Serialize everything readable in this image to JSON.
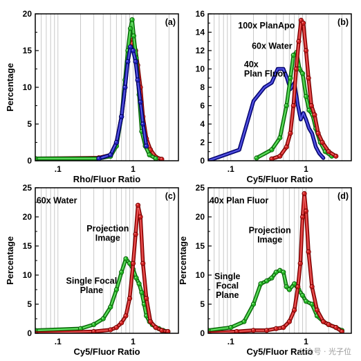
{
  "watermark": "公众号 · 光子位",
  "colors": {
    "red": "#cc1e1e",
    "green": "#22b422",
    "blue": "#2222bb",
    "grid": "#c8c8c8"
  },
  "chart_data": [
    {
      "id": "a",
      "panel_label": "(a)",
      "type": "line",
      "xlabel": "Rho/Fluor Ratio",
      "ylabel": "Percentage",
      "xscale": "log",
      "xlim": [
        0.05,
        4
      ],
      "ylim": [
        0,
        20
      ],
      "xticks": [
        0.1,
        1
      ],
      "xtick_labels": [
        ".1",
        "1"
      ],
      "yticks": [
        0,
        5,
        10,
        15,
        20
      ],
      "ytick_labels": [
        "0",
        "5",
        "10",
        "15",
        "20"
      ],
      "grid": true,
      "annotations": [],
      "series": [
        {
          "color": "red",
          "markers": true,
          "x": [
            0.05,
            0.35,
            0.5,
            0.6,
            0.7,
            0.78,
            0.85,
            0.92,
            1.0,
            1.08,
            1.15,
            1.25,
            1.35,
            1.5,
            1.7,
            2.0,
            2.4
          ],
          "y": [
            0.3,
            0.4,
            0.8,
            2.5,
            6,
            10,
            14,
            15.5,
            16.5,
            15,
            13,
            10,
            6,
            3,
            1.5,
            0.5,
            0.2
          ]
        },
        {
          "color": "green",
          "markers": true,
          "x": [
            0.05,
            0.35,
            0.5,
            0.6,
            0.7,
            0.78,
            0.85,
            0.92,
            0.97,
            1.02,
            1.1,
            1.2,
            1.3,
            1.45,
            1.65,
            2.0
          ],
          "y": [
            0.3,
            0.3,
            0.6,
            2,
            6,
            11,
            15,
            18,
            19.2,
            17,
            14,
            9,
            4,
            2,
            0.8,
            0.3
          ]
        },
        {
          "color": "blue",
          "markers": true,
          "x": [
            0.35,
            0.5,
            0.6,
            0.7,
            0.78,
            0.85,
            0.92,
            1.0,
            1.08,
            1.15,
            1.25,
            1.35,
            1.5
          ],
          "y": [
            0.3,
            0.8,
            2.5,
            6,
            10,
            13.5,
            15.5,
            15,
            13.5,
            11,
            8,
            5,
            2
          ]
        }
      ]
    },
    {
      "id": "b",
      "panel_label": "(b)",
      "type": "line",
      "xlabel": "Cy5/Fluor Ratio",
      "ylabel": "",
      "xscale": "log",
      "xlim": [
        0.05,
        4
      ],
      "ylim": [
        0,
        16
      ],
      "xticks": [
        0.1,
        1
      ],
      "xtick_labels": [
        ".1",
        "1"
      ],
      "yticks": [
        0,
        2,
        4,
        6,
        8,
        10,
        12,
        14,
        16
      ],
      "ytick_labels": [
        "0",
        "2",
        "4",
        "6",
        "8",
        "10",
        "12",
        "14",
        "16"
      ],
      "grid": true,
      "annotations": [
        {
          "lines": [
            "100x PlanApo"
          ],
          "x": 0.125,
          "y": 14.4
        },
        {
          "lines": [
            "60x Water"
          ],
          "x": 0.19,
          "y": 12.2
        },
        {
          "lines": [
            "40x",
            "Plan Fluor"
          ],
          "x": 0.15,
          "y": 10.2
        }
      ],
      "series": [
        {
          "color": "blue",
          "markers": false,
          "x": [
            0.05,
            0.13,
            0.2,
            0.28,
            0.35,
            0.42,
            0.5,
            0.56,
            0.62,
            0.7,
            0.78,
            0.85,
            0.92,
            1.0,
            1.1,
            1.2,
            1.35,
            1.5,
            1.7
          ],
          "y": [
            0,
            1.2,
            6.5,
            8,
            8.5,
            10,
            10,
            9,
            7.8,
            8.5,
            6,
            4.5,
            5.2,
            4.5,
            3.5,
            3,
            1.5,
            0.8,
            0.3
          ]
        },
        {
          "color": "green",
          "markers": true,
          "x": [
            0.22,
            0.35,
            0.45,
            0.55,
            0.62,
            0.68,
            0.75,
            0.82,
            0.9,
            1.0,
            1.1,
            1.22,
            1.35,
            1.55,
            1.8,
            2.2
          ],
          "y": [
            0.3,
            1.2,
            2.5,
            6,
            9,
            11.5,
            11.8,
            10,
            9.5,
            7,
            5.5,
            5,
            3.5,
            2,
            1,
            0.5
          ]
        },
        {
          "color": "red",
          "markers": true,
          "x": [
            0.35,
            0.45,
            0.55,
            0.62,
            0.68,
            0.74,
            0.8,
            0.86,
            0.92,
            1.0,
            1.08,
            1.18,
            1.3,
            1.45,
            1.65,
            2.0,
            2.5
          ],
          "y": [
            0.2,
            0.5,
            1.5,
            3,
            6,
            10,
            13,
            15.3,
            15,
            12,
            9,
            6,
            5,
            3,
            2,
            1,
            0.5
          ]
        }
      ]
    },
    {
      "id": "c",
      "panel_label": "(c)",
      "type": "line",
      "xlabel": "Cy5/Fluor Ratio",
      "ylabel": "Percentage",
      "xscale": "log",
      "xlim": [
        0.05,
        4
      ],
      "ylim": [
        0,
        25
      ],
      "xticks": [
        0.1,
        1
      ],
      "xtick_labels": [
        ".1",
        "1"
      ],
      "yticks": [
        0,
        5,
        10,
        15,
        20,
        25
      ],
      "ytick_labels": [
        "0",
        "5",
        "10",
        "15",
        "20",
        "25"
      ],
      "grid": true,
      "annotations": [
        {
          "lines": [
            "60x Water"
          ],
          "x": 0.052,
          "y": 22.3
        },
        {
          "lines": [
            "Projection",
            "Image"
          ],
          "x": 0.46,
          "y": 17.5,
          "align": "center"
        },
        {
          "lines": [
            "Single Focal",
            "Plane"
          ],
          "x": 0.28,
          "y": 8.5,
          "align": "center"
        }
      ],
      "series": [
        {
          "color": "green",
          "markers": true,
          "x": [
            0.05,
            0.2,
            0.3,
            0.4,
            0.5,
            0.6,
            0.7,
            0.8,
            0.9,
            1.0,
            1.1,
            1.2,
            1.3,
            1.4,
            1.5,
            1.65,
            1.8,
            2.0,
            2.2,
            2.5,
            2.9
          ],
          "y": [
            0.5,
            0.8,
            1.5,
            2.5,
            4.5,
            7.5,
            10.5,
            12.8,
            12,
            11,
            9.5,
            8.5,
            7,
            5,
            3,
            2,
            1.5,
            1,
            0.8,
            0.5,
            0.3
          ]
        },
        {
          "color": "red",
          "markers": true,
          "x": [
            0.05,
            0.3,
            0.5,
            0.6,
            0.7,
            0.8,
            0.9,
            1.0,
            1.08,
            1.16,
            1.25,
            1.35,
            1.5,
            1.7,
            2.0,
            2.4,
            2.9
          ],
          "y": [
            0,
            0.3,
            0.6,
            1,
            1.8,
            3,
            6,
            12,
            17,
            22,
            20,
            12,
            6,
            2,
            1,
            0.5,
            0.3
          ]
        }
      ]
    },
    {
      "id": "d",
      "panel_label": "(d)",
      "type": "line",
      "xlabel": "Cy5/Fluor Ratio",
      "ylabel": "Percentage",
      "xscale": "log",
      "xlim": [
        0.05,
        4
      ],
      "ylim": [
        0,
        25
      ],
      "xticks": [
        0.1,
        1
      ],
      "xtick_labels": [
        ".1",
        "1"
      ],
      "yticks": [
        0,
        5,
        10,
        15,
        20,
        25
      ],
      "ytick_labels": [
        "0",
        "5",
        "10",
        "15",
        "20",
        "25"
      ],
      "grid": true,
      "annotations": [
        {
          "lines": [
            "40x Plan Fluor"
          ],
          "x": 0.052,
          "y": 22.3
        },
        {
          "lines": [
            "Projection",
            "Image"
          ],
          "x": 0.33,
          "y": 17.2,
          "align": "center"
        },
        {
          "lines": [
            "Single",
            "Focal",
            "Plane"
          ],
          "x": 0.09,
          "y": 9.3,
          "align": "center"
        }
      ],
      "series": [
        {
          "color": "green",
          "markers": true,
          "x": [
            0.05,
            0.1,
            0.15,
            0.2,
            0.25,
            0.3,
            0.35,
            0.4,
            0.45,
            0.5,
            0.55,
            0.6,
            0.7,
            0.8,
            0.9,
            1.0,
            1.2,
            1.4,
            1.7,
            2.0,
            2.5,
            3.0
          ],
          "y": [
            0.5,
            1,
            2,
            5,
            8.5,
            9,
            9.5,
            10.5,
            10.8,
            10.5,
            8,
            7.5,
            8.5,
            7.5,
            6.5,
            5.5,
            5,
            3,
            2,
            1.5,
            1,
            0.5
          ]
        },
        {
          "color": "red",
          "markers": true,
          "x": [
            0.05,
            0.12,
            0.2,
            0.3,
            0.4,
            0.5,
            0.6,
            0.7,
            0.78,
            0.84,
            0.9,
            0.95,
            1.0,
            1.08,
            1.2,
            1.4,
            1.7,
            2.0,
            2.5,
            3.0
          ],
          "y": [
            0,
            0.3,
            0.5,
            0.5,
            0.8,
            1,
            2,
            4,
            8,
            12,
            20,
            24,
            21,
            14,
            8,
            4,
            2,
            1.5,
            1,
            0.3
          ]
        }
      ]
    }
  ]
}
